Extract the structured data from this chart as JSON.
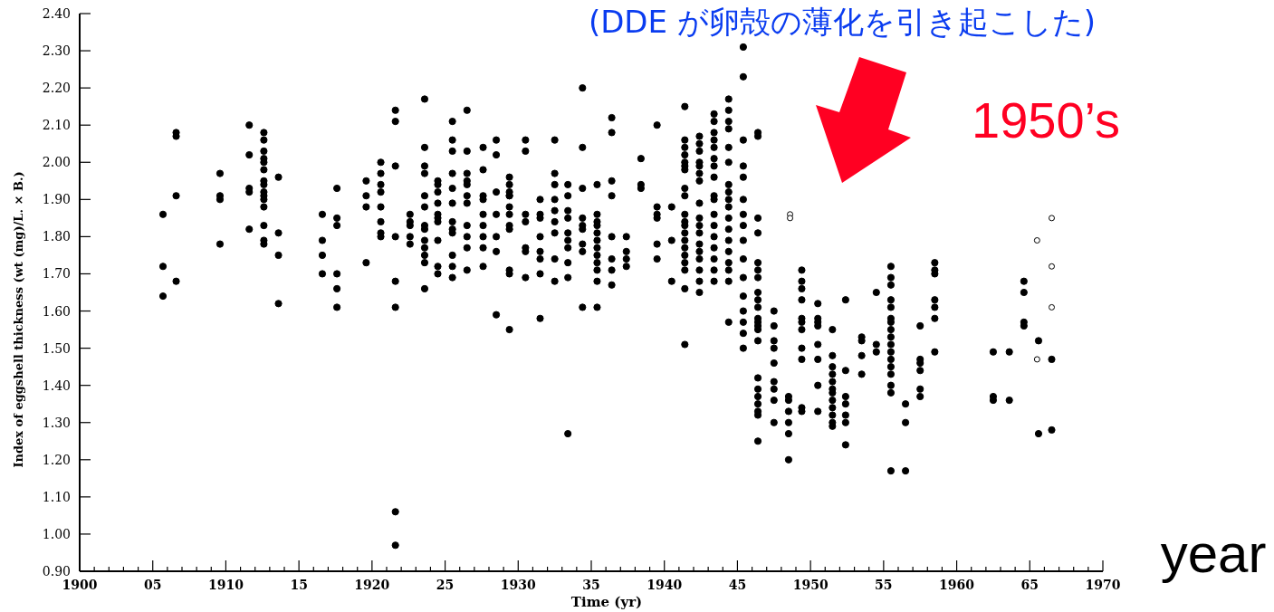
{
  "chart_data": {
    "type": "scatter",
    "xlabel": "Time (yr)",
    "ylabel": "Index of eggshell thickness (wt (mg)/L. × B.)",
    "annotations": [
      "(DDE が卵殻の薄化を引き起こした)",
      "1950’s",
      "year"
    ],
    "marker": "circle",
    "xlim": [
      1900,
      1970
    ],
    "ylim": [
      0.9,
      2.4
    ],
    "xticks": [
      1900,
      {
        "value": 1901,
        "label": null
      },
      {
        "value": 1902,
        "label": null
      },
      {
        "value": 1903,
        "label": null
      },
      {
        "value": 1904,
        "label": null
      },
      {
        "value": 1905,
        "label": "05"
      },
      {
        "value": 1906,
        "label": null
      },
      {
        "value": 1907,
        "label": null
      },
      {
        "value": 1908,
        "label": null
      },
      {
        "value": 1909,
        "label": null
      },
      1910,
      {
        "value": 1911,
        "label": null
      },
      {
        "value": 1912,
        "label": null
      },
      {
        "value": 1913,
        "label": null
      },
      {
        "value": 1914,
        "label": null
      },
      {
        "value": 1915,
        "label": "15"
      },
      {
        "value": 1916,
        "label": null
      },
      {
        "value": 1917,
        "label": null
      },
      {
        "value": 1918,
        "label": null
      },
      {
        "value": 1919,
        "label": null
      },
      1920,
      {
        "value": 1921,
        "label": null
      },
      {
        "value": 1922,
        "label": null
      },
      {
        "value": 1923,
        "label": null
      },
      {
        "value": 1924,
        "label": null
      },
      {
        "value": 1925,
        "label": "25"
      },
      {
        "value": 1926,
        "label": null
      },
      {
        "value": 1927,
        "label": null
      },
      {
        "value": 1928,
        "label": null
      },
      {
        "value": 1929,
        "label": null
      },
      1930,
      {
        "value": 1931,
        "label": null
      },
      {
        "value": 1932,
        "label": null
      },
      {
        "value": 1933,
        "label": null
      },
      {
        "value": 1934,
        "label": null
      },
      {
        "value": 1935,
        "label": "35"
      },
      {
        "value": 1936,
        "label": null
      },
      {
        "value": 1937,
        "label": null
      },
      {
        "value": 1938,
        "label": null
      },
      {
        "value": 1939,
        "label": null
      },
      1940,
      {
        "value": 1941,
        "label": null
      },
      {
        "value": 1942,
        "label": null
      },
      {
        "value": 1943,
        "label": null
      },
      {
        "value": 1944,
        "label": null
      },
      {
        "value": 1945,
        "label": "45"
      },
      {
        "value": 1946,
        "label": null
      },
      {
        "value": 1947,
        "label": null
      },
      {
        "value": 1948,
        "label": null
      },
      {
        "value": 1949,
        "label": null
      },
      1950,
      {
        "value": 1951,
        "label": null
      },
      {
        "value": 1952,
        "label": null
      },
      {
        "value": 1953,
        "label": null
      },
      {
        "value": 1954,
        "label": null
      },
      {
        "value": 1955,
        "label": "55"
      },
      {
        "value": 1956,
        "label": null
      },
      {
        "value": 1957,
        "label": null
      },
      {
        "value": 1958,
        "label": null
      },
      {
        "value": 1959,
        "label": null
      },
      1960,
      {
        "value": 1961,
        "label": null
      },
      {
        "value": 1962,
        "label": null
      },
      {
        "value": 1963,
        "label": null
      },
      {
        "value": 1964,
        "label": null
      },
      {
        "value": 1965,
        "label": "65"
      },
      {
        "value": 1966,
        "label": null
      },
      {
        "value": 1967,
        "label": null
      },
      {
        "value": 1968,
        "label": null
      },
      {
        "value": 1969,
        "label": null
      },
      1970
    ],
    "yticks": [
      {
        "value": 0.9,
        "label": "0.90"
      },
      {
        "value": 1.0,
        "label": "1.00"
      },
      {
        "value": 1.1,
        "label": "1.10"
      },
      {
        "value": 1.2,
        "label": "1.20"
      },
      {
        "value": 1.3,
        "label": "1.30"
      },
      {
        "value": 1.4,
        "label": "1.40"
      },
      {
        "value": 1.5,
        "label": "1.50"
      },
      {
        "value": 1.6,
        "label": "1.60"
      },
      {
        "value": 1.7,
        "label": "1.70"
      },
      {
        "value": 1.8,
        "label": "1.80"
      },
      {
        "value": 1.9,
        "label": "1.90"
      },
      {
        "value": 2.0,
        "label": "2.00"
      },
      {
        "value": 2.1,
        "label": "2.10"
      },
      {
        "value": 2.2,
        "label": "2.20"
      },
      {
        "value": 2.3,
        "label": "2.30"
      },
      {
        "value": 2.4,
        "label": "2.40"
      }
    ],
    "series": [
      {
        "color": "#000000",
        "x": [
          1905.7,
          1905.7,
          1905.7,
          1906.6,
          1906.6,
          1906.6,
          1906.6,
          1909.6,
          1909.6,
          1909.6,
          1909.6,
          1911.6,
          1911.6,
          1911.6,
          1911.6,
          1911.6,
          1912.6,
          1912.6,
          1912.6,
          1912.6,
          1912.6,
          1912.6,
          1912.6,
          1912.6,
          1912.6,
          1912.6,
          1912.6,
          1912.6,
          1912.6,
          1912.6,
          1912.6,
          1913.6,
          1913.6,
          1913.6,
          1913.6,
          1916.6,
          1916.6,
          1916.6,
          1916.6,
          1917.6,
          1917.6,
          1917.6,
          1917.6,
          1917.6,
          1917.6,
          1919.6,
          1919.6,
          1919.6,
          1919.6,
          1920.6,
          1920.6,
          1920.6,
          1920.6,
          1920.6,
          1920.6,
          1920.6,
          1920.6,
          1921.6,
          1921.6,
          1921.6,
          1921.6,
          1921.6,
          1921.6,
          1921.6,
          1921.6,
          1922.6,
          1922.6,
          1922.6,
          1922.6,
          1922.6,
          1923.6,
          1923.6,
          1923.6,
          1923.6,
          1923.6,
          1923.6,
          1923.6,
          1923.6,
          1923.6,
          1923.6,
          1923.6,
          1923.6,
          1923.6,
          1924.5,
          1924.5,
          1924.5,
          1924.5,
          1924.5,
          1924.5,
          1924.5,
          1924.5,
          1924.5,
          1924.5,
          1925.5,
          1925.5,
          1925.5,
          1925.5,
          1925.5,
          1925.5,
          1925.5,
          1925.5,
          1925.5,
          1925.5,
          1925.5,
          1925.5,
          1926.5,
          1926.5,
          1926.5,
          1926.5,
          1926.5,
          1926.5,
          1926.5,
          1926.5,
          1926.5,
          1926.5,
          1926.5,
          1927.6,
          1927.6,
          1927.6,
          1927.6,
          1927.6,
          1927.6,
          1927.6,
          1927.6,
          1927.6,
          1928.5,
          1928.5,
          1928.5,
          1928.5,
          1928.5,
          1928.5,
          1928.5,
          1929.4,
          1929.4,
          1929.4,
          1929.4,
          1929.4,
          1929.4,
          1929.4,
          1929.4,
          1929.4,
          1929.4,
          1929.4,
          1929.4,
          1930.5,
          1930.5,
          1930.5,
          1930.5,
          1930.5,
          1930.5,
          1930.5,
          1931.5,
          1931.5,
          1931.5,
          1931.5,
          1931.5,
          1931.5,
          1931.5,
          1931.5,
          1932.5,
          1932.5,
          1932.5,
          1932.5,
          1932.5,
          1932.5,
          1932.5,
          1932.5,
          1932.5,
          1933.4,
          1933.4,
          1933.4,
          1933.4,
          1933.4,
          1933.4,
          1933.4,
          1933.4,
          1933.4,
          1933.4,
          1934.4,
          1934.4,
          1934.4,
          1934.4,
          1934.4,
          1934.4,
          1934.4,
          1934.4,
          1934.4,
          1935.4,
          1935.4,
          1935.4,
          1935.4,
          1935.4,
          1935.4,
          1935.4,
          1935.4,
          1935.4,
          1935.4,
          1935.4,
          1935.4,
          1936.4,
          1936.4,
          1936.4,
          1936.4,
          1936.4,
          1936.4,
          1936.4,
          1936.4,
          1937.4,
          1937.4,
          1937.4,
          1937.4,
          1938.4,
          1938.4,
          1938.4,
          1939.5,
          1939.5,
          1939.5,
          1939.5,
          1939.5,
          1939.5,
          1940.5,
          1940.5,
          1940.5,
          1941.4,
          1941.4,
          1941.4,
          1941.4,
          1941.4,
          1941.4,
          1941.4,
          1941.4,
          1941.4,
          1941.4,
          1941.4,
          1941.4,
          1941.4,
          1941.4,
          1941.4,
          1941.4,
          1941.4,
          1941.4,
          1941.4,
          1941.4,
          1942.4,
          1942.4,
          1942.4,
          1942.4,
          1942.4,
          1942.4,
          1942.4,
          1942.4,
          1942.4,
          1942.4,
          1942.4,
          1942.4,
          1942.4,
          1942.4,
          1942.4,
          1942.4,
          1942.4,
          1943.4,
          1943.4,
          1943.4,
          1943.4,
          1943.4,
          1943.4,
          1943.4,
          1943.4,
          1943.4,
          1943.4,
          1943.4,
          1943.4,
          1943.4,
          1943.4,
          1943.4,
          1943.4,
          1943.4,
          1944.4,
          1944.4,
          1944.4,
          1944.4,
          1944.4,
          1944.4,
          1944.4,
          1944.4,
          1944.4,
          1944.4,
          1944.4,
          1944.4,
          1944.4,
          1944.4,
          1944.4,
          1944.4,
          1944.4,
          1944.4,
          1945.4,
          1945.4,
          1945.4,
          1945.4,
          1945.4,
          1945.4,
          1945.4,
          1945.4,
          1945.4,
          1945.4,
          1945.4,
          1945.4,
          1945.4,
          1945.4,
          1945.4,
          1945.4,
          1946.4,
          1946.4,
          1946.4,
          1946.4,
          1946.4,
          1946.4,
          1946.4,
          1946.4,
          1946.4,
          1946.4,
          1946.4,
          1946.4,
          1946.4,
          1946.4,
          1946.4,
          1946.4,
          1946.4,
          1946.4,
          1946.4,
          1946.4,
          1946.4,
          1946.4,
          1947.5,
          1947.5,
          1947.5,
          1947.5,
          1947.5,
          1947.5,
          1947.5,
          1947.5,
          1947.5,
          1948.5,
          1948.5,
          1948.5,
          1948.5,
          1948.5,
          1948.5,
          1949.4,
          1949.4,
          1949.4,
          1949.4,
          1949.4,
          1949.4,
          1949.4,
          1949.4,
          1949.4,
          1949.4,
          1949.4,
          1950.5,
          1950.5,
          1950.5,
          1950.5,
          1950.5,
          1950.5,
          1950.5,
          1950.5,
          1951.5,
          1951.5,
          1951.5,
          1951.5,
          1951.5,
          1951.5,
          1951.5,
          1951.5,
          1951.5,
          1951.5,
          1951.5,
          1951.5,
          1952.4,
          1952.4,
          1952.4,
          1952.4,
          1952.4,
          1952.4,
          1952.4,
          1953.5,
          1953.5,
          1953.5,
          1953.5,
          1954.5,
          1954.5,
          1954.5,
          1955.5,
          1955.5,
          1955.5,
          1955.5,
          1955.5,
          1955.5,
          1955.5,
          1955.5,
          1955.5,
          1955.5,
          1955.5,
          1955.5,
          1955.5,
          1955.5,
          1955.5,
          1955.5,
          1955.5,
          1956.5,
          1956.5,
          1956.5,
          1957.5,
          1957.5,
          1957.5,
          1957.5,
          1957.5,
          1957.5,
          1958.5,
          1958.5,
          1958.5,
          1958.5,
          1958.5,
          1958.5,
          1958.5,
          1962.5,
          1962.5,
          1962.5,
          1963.6,
          1963.6,
          1964.6,
          1964.6,
          1964.6,
          1964.6,
          1965.6,
          1965.6,
          1966.5,
          1966.5
        ],
        "values": [
          1.86,
          1.72,
          1.64,
          2.08,
          2.07,
          1.91,
          1.68,
          1.97,
          1.91,
          1.9,
          1.78,
          2.1,
          2.02,
          1.93,
          1.92,
          1.82,
          2.08,
          2.06,
          2.03,
          2.01,
          2.0,
          1.98,
          1.95,
          1.94,
          1.92,
          1.91,
          1.9,
          1.88,
          1.83,
          1.79,
          1.78,
          1.96,
          1.81,
          1.75,
          1.62,
          1.86,
          1.79,
          1.75,
          1.7,
          1.93,
          1.85,
          1.83,
          1.7,
          1.66,
          1.61,
          1.95,
          1.91,
          1.88,
          1.73,
          2.0,
          1.97,
          1.94,
          1.92,
          1.88,
          1.84,
          1.81,
          1.8,
          2.14,
          2.11,
          1.99,
          1.8,
          1.68,
          1.61,
          1.06,
          0.97,
          1.86,
          1.84,
          1.83,
          1.8,
          1.78,
          2.17,
          2.04,
          1.99,
          1.97,
          1.91,
          1.88,
          1.83,
          1.82,
          1.79,
          1.77,
          1.75,
          1.73,
          1.66,
          1.95,
          1.94,
          1.92,
          1.89,
          1.86,
          1.85,
          1.84,
          1.79,
          1.72,
          1.7,
          2.11,
          2.06,
          2.03,
          1.97,
          1.93,
          1.89,
          1.84,
          1.82,
          1.81,
          1.75,
          1.72,
          1.69,
          2.14,
          2.03,
          1.97,
          1.95,
          1.94,
          1.91,
          1.89,
          1.83,
          1.8,
          1.77,
          1.71,
          2.04,
          1.98,
          1.91,
          1.9,
          1.86,
          1.83,
          1.8,
          1.77,
          1.72,
          2.06,
          2.02,
          1.92,
          1.86,
          1.8,
          1.76,
          1.59,
          1.96,
          1.94,
          1.92,
          1.91,
          1.91,
          1.88,
          1.86,
          1.83,
          1.82,
          1.71,
          1.7,
          1.55,
          2.06,
          2.03,
          1.86,
          1.84,
          1.77,
          1.76,
          1.69,
          1.9,
          1.86,
          1.85,
          1.8,
          1.76,
          1.74,
          1.7,
          1.58,
          2.06,
          1.97,
          1.94,
          1.9,
          1.87,
          1.84,
          1.81,
          1.74,
          1.68,
          1.94,
          1.91,
          1.87,
          1.85,
          1.81,
          1.79,
          1.77,
          1.73,
          1.69,
          1.27,
          2.2,
          2.04,
          1.93,
          1.85,
          1.83,
          1.82,
          1.78,
          1.76,
          1.61,
          1.94,
          1.86,
          1.84,
          1.83,
          1.81,
          1.79,
          1.77,
          1.75,
          1.73,
          1.71,
          1.68,
          1.61,
          2.12,
          2.08,
          1.95,
          1.91,
          1.8,
          1.74,
          1.71,
          1.67,
          1.8,
          1.76,
          1.74,
          1.72,
          2.01,
          1.94,
          1.93,
          2.1,
          1.88,
          1.86,
          1.85,
          1.78,
          1.74,
          1.88,
          1.79,
          1.68,
          2.15,
          2.06,
          2.04,
          2.02,
          2.0,
          1.99,
          1.98,
          1.93,
          1.91,
          1.86,
          1.84,
          1.83,
          1.81,
          1.79,
          1.77,
          1.75,
          1.73,
          1.71,
          1.66,
          1.51,
          2.07,
          2.05,
          2.03,
          2.0,
          1.99,
          1.97,
          1.95,
          1.89,
          1.85,
          1.83,
          1.81,
          1.78,
          1.76,
          1.74,
          1.71,
          1.68,
          1.65,
          2.13,
          2.11,
          2.08,
          2.06,
          2.04,
          2.01,
          1.99,
          1.96,
          1.91,
          1.9,
          1.86,
          1.83,
          1.8,
          1.77,
          1.74,
          1.71,
          1.68,
          2.17,
          2.14,
          2.11,
          2.09,
          2.04,
          2.0,
          1.94,
          1.92,
          1.9,
          1.88,
          1.85,
          1.82,
          1.79,
          1.76,
          1.73,
          1.71,
          1.68,
          1.57,
          2.31,
          2.23,
          2.06,
          1.99,
          1.96,
          1.9,
          1.86,
          1.83,
          1.79,
          1.74,
          1.69,
          1.64,
          1.6,
          1.57,
          1.54,
          1.5,
          2.08,
          2.07,
          1.85,
          1.81,
          1.73,
          1.71,
          1.69,
          1.65,
          1.63,
          1.61,
          1.58,
          1.57,
          1.56,
          1.55,
          1.52,
          1.42,
          1.39,
          1.37,
          1.35,
          1.33,
          1.32,
          1.25,
          1.6,
          1.56,
          1.52,
          1.5,
          1.46,
          1.41,
          1.39,
          1.36,
          1.3,
          1.37,
          1.36,
          1.33,
          1.3,
          1.27,
          1.2,
          1.71,
          1.68,
          1.66,
          1.63,
          1.58,
          1.57,
          1.55,
          1.5,
          1.47,
          1.34,
          1.33,
          1.62,
          1.58,
          1.57,
          1.56,
          1.51,
          1.47,
          1.4,
          1.33,
          1.55,
          1.48,
          1.45,
          1.43,
          1.41,
          1.39,
          1.38,
          1.36,
          1.34,
          1.32,
          1.3,
          1.29,
          1.63,
          1.44,
          1.37,
          1.35,
          1.32,
          1.3,
          1.24,
          1.53,
          1.52,
          1.48,
          1.43,
          1.65,
          1.51,
          1.49,
          1.72,
          1.69,
          1.67,
          1.63,
          1.61,
          1.58,
          1.57,
          1.55,
          1.53,
          1.51,
          1.49,
          1.47,
          1.45,
          1.43,
          1.4,
          1.38,
          1.17,
          1.35,
          1.3,
          1.17,
          1.56,
          1.47,
          1.46,
          1.44,
          1.39,
          1.37,
          1.73,
          1.71,
          1.7,
          1.63,
          1.61,
          1.58,
          1.49,
          1.49,
          1.37,
          1.36,
          1.49,
          1.36,
          1.68,
          1.65,
          1.57,
          1.56,
          1.52,
          1.27,
          1.47,
          1.28
        ]
      },
      {
        "color": "#000000",
        "marker": "open circle",
        "x": [
          1948.6,
          1948.6,
          1965.5,
          1965.5,
          1966.5,
          1966.5,
          1966.5
        ],
        "values": [
          1.86,
          1.85,
          1.79,
          1.47,
          1.85,
          1.72,
          1.61
        ]
      }
    ]
  }
}
